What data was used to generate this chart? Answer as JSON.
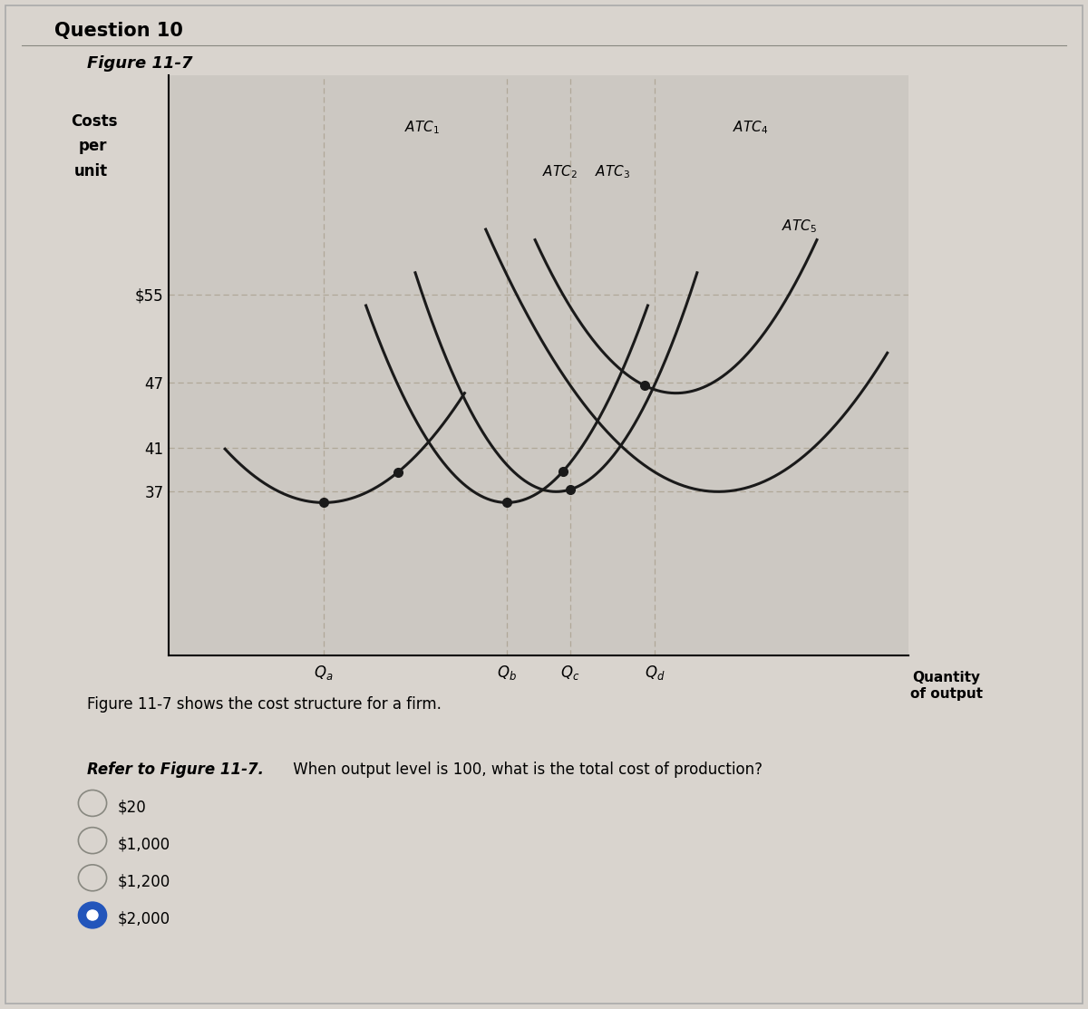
{
  "figure_title": "Figure 11-7",
  "question_title": "Question 10",
  "caption": "Figure 11-7 shows the cost structure for a firm.",
  "question_bold": "Refer to Figure 11-7.",
  "question_rest": " When output level is 100, what is the total cost of production?",
  "choices": [
    "$20",
    "$1,000",
    "$1,200",
    "$2,000"
  ],
  "selected_choice": 3,
  "bg_color": "#d9d4ce",
  "plot_bg_color": "#ccc8c2",
  "curve_color": "#1a1a1a",
  "dot_color": "#1a1a1a",
  "dashed_color": "#b0a898",
  "yticks": [
    37,
    41,
    47,
    55
  ],
  "ytick_labels": [
    "37",
    "41",
    "47",
    "$55"
  ],
  "qa": 2.2,
  "qb": 4.8,
  "qc": 5.7,
  "qd": 6.9,
  "ylim_low": 22,
  "ylim_high": 75,
  "xlim_low": 0.0,
  "xlim_high": 10.5,
  "atc1_xmin": 2.2,
  "atc1_ymin": 36,
  "atc1_a": 2.5,
  "atc2_xmin": 4.8,
  "atc2_ymin": 36,
  "atc2_a": 4.5,
  "atc3_xmin": 5.5,
  "atc3_ymin": 37,
  "atc3_a": 5.0,
  "atc4_xmin": 7.2,
  "atc4_ymin": 46,
  "atc4_a": 3.5,
  "atc5_xmin": 7.8,
  "atc5_ymin": 37,
  "atc5_a": 2.2
}
